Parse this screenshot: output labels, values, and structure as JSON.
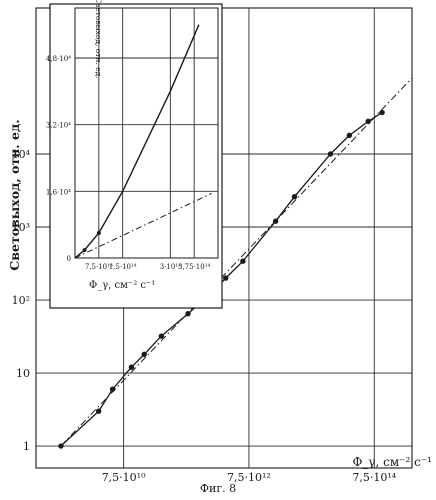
{
  "caption": "Фиг. 8",
  "chart_data": [
    {
      "type": "line",
      "ylabel": "Световыход, отн. ед.",
      "xlabel": "Φ_γ, см⁻² с⁻¹",
      "x_scale": "log",
      "y_scale": "log",
      "xlim": [
        3000000000.0,
        3000000000000000.0
      ],
      "ylim": [
        0.5,
        1000000.0
      ],
      "x_ticks": [
        {
          "value": 75000000000.0,
          "label": "7,5·10¹⁰"
        },
        {
          "value": 7500000000000.0,
          "label": "7,5·10¹²"
        },
        {
          "value": 750000000000000.0,
          "label": "7,5·10¹⁴"
        }
      ],
      "y_ticks": [
        {
          "value": 1,
          "label": "1"
        },
        {
          "value": 10,
          "label": "10"
        },
        {
          "value": 100,
          "label": "10²"
        },
        {
          "value": 1000,
          "label": "10³"
        },
        {
          "value": 10000,
          "label": "10⁴"
        }
      ],
      "grid": true,
      "series": [
        {
          "style": "solid-with-markers",
          "points": [
            {
              "x": 7500000000.0,
              "y": 1.0
            },
            {
              "x": 30000000000.0,
              "y": 3.0
            },
            {
              "x": 50000000000.0,
              "y": 6.0
            },
            {
              "x": 100000000000.0,
              "y": 12
            },
            {
              "x": 160000000000.0,
              "y": 18
            },
            {
              "x": 300000000000.0,
              "y": 32
            },
            {
              "x": 800000000000.0,
              "y": 65
            },
            {
              "x": 2000000000000.0,
              "y": 130
            },
            {
              "x": 3200000000000.0,
              "y": 200
            },
            {
              "x": 6000000000000.0,
              "y": 340
            },
            {
              "x": 20000000000000.0,
              "y": 1200
            },
            {
              "x": 40000000000000.0,
              "y": 2600
            },
            {
              "x": 150000000000000.0,
              "y": 10000
            },
            {
              "x": 300000000000000.0,
              "y": 18000
            },
            {
              "x": 600000000000000.0,
              "y": 28000
            },
            {
              "x": 1000000000000000.0,
              "y": 37000
            }
          ]
        },
        {
          "style": "dash-dot",
          "points": [
            {
              "x": 7500000000.0,
              "y": 1.0
            },
            {
              "x": 3000000000000000.0,
              "y": 110000
            }
          ]
        }
      ]
    },
    {
      "type": "line",
      "ylabel": "Световыход, отн. ед.",
      "xlabel": "Φ_γ, см⁻² с⁻¹",
      "xlim": [
        0,
        450000000000000.0
      ],
      "ylim": [
        0,
        60000
      ],
      "x_ticks": [
        {
          "value": 75000000000000.0,
          "label": "7,5·10¹³"
        },
        {
          "value": 150000000000000.0,
          "label": "1,5·10¹⁴"
        },
        {
          "value": 300000000000000.0,
          "label": "3·10¹⁴"
        },
        {
          "value": 375000000000000.0,
          "label": "3,75·10¹⁴"
        }
      ],
      "y_ticks": [
        {
          "value": 0,
          "label": "0"
        },
        {
          "value": 16000,
          "label": "1,6·10⁴"
        },
        {
          "value": 32000,
          "label": "3,2·10⁴"
        },
        {
          "value": 48000,
          "label": "4,8·10⁴"
        }
      ],
      "grid": true,
      "series": [
        {
          "style": "solid",
          "points": [
            {
              "x": 0,
              "y": 0
            },
            {
              "x": 30000000000000.0,
              "y": 1900
            },
            {
              "x": 75000000000000.0,
              "y": 6000
            },
            {
              "x": 150000000000000.0,
              "y": 16000
            },
            {
              "x": 300000000000000.0,
              "y": 40000
            },
            {
              "x": 390000000000000.0,
              "y": 56000
            }
          ]
        },
        {
          "style": "dash-dot",
          "points": [
            {
              "x": 0,
              "y": 0
            },
            {
              "x": 430000000000000.0,
              "y": 15500
            }
          ]
        }
      ]
    }
  ]
}
